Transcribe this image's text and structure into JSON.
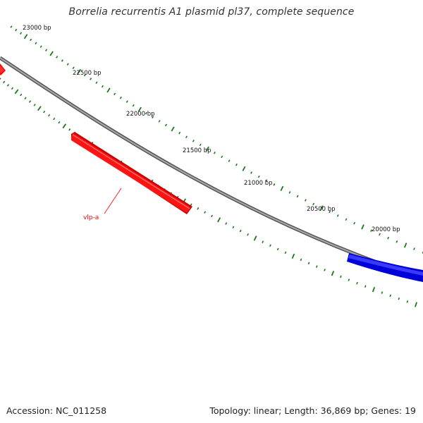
{
  "title": "Borrelia recurrentis A1 plasmid pl37, complete sequence",
  "footer": {
    "accession": "Accession: NC_011258",
    "summary": "Topology: linear; Length: 36,869 bp; Genes: 19"
  },
  "scale": {
    "labels": [
      "23000 bp",
      "22500 bp",
      "22000 bp",
      "21500 bp",
      "21000 bp",
      "20500 bp",
      "20000 bp"
    ]
  },
  "genes": [
    {
      "label": "vlp-a",
      "color": "#ff0000"
    },
    {
      "label": "",
      "color": "#ff0000"
    },
    {
      "label": "",
      "color": "#0000ff"
    }
  ],
  "colors": {
    "backbone": "#888888",
    "tick": "#1a7a1a"
  }
}
